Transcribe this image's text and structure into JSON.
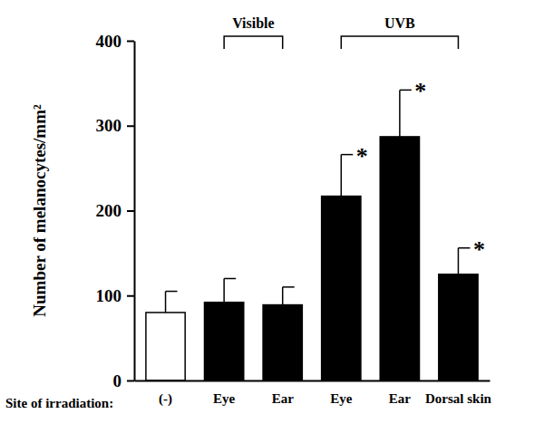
{
  "chart_data": {
    "type": "bar",
    "categories": [
      "(-)",
      "Eye",
      "Ear",
      "Eye",
      "Ear",
      "Dorsal skin"
    ],
    "values": [
      80,
      92,
      89,
      217,
      287,
      125
    ],
    "errors": [
      25,
      28,
      21,
      49,
      55,
      31
    ],
    "significance": [
      null,
      null,
      null,
      "*",
      "*",
      "*"
    ],
    "colors": [
      "#ffffff",
      "#000000",
      "#000000",
      "#000000",
      "#000000",
      "#000000"
    ],
    "x_label": "Site of irradiation:",
    "y_label": "Number of melanocytes/mm²",
    "groups": [
      {
        "label": "Visible",
        "categories": [
          1,
          2
        ]
      },
      {
        "label": "UVB",
        "categories": [
          3,
          4,
          5
        ]
      }
    ],
    "ylim": [
      0,
      400
    ],
    "yticks": [
      0,
      100,
      200,
      300,
      400
    ],
    "grid": false
  }
}
